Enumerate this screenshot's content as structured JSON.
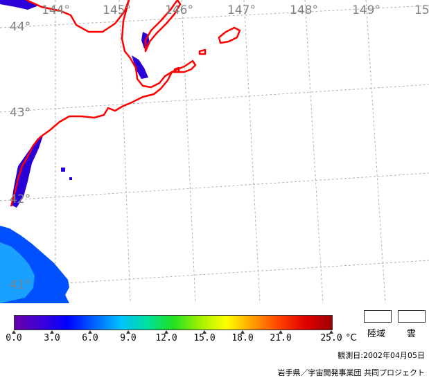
{
  "map": {
    "longitude_labels": [
      "144°",
      "145°",
      "146°",
      "147°",
      "148°",
      "149°",
      "15"
    ],
    "latitude_labels": [
      "44°",
      "43°",
      "42°",
      "41°"
    ],
    "colors": {
      "coastline": "#ff0000",
      "graticule": "#b0b0b0",
      "label": "#808080",
      "sst_cold": "#2b00d8",
      "sst_cool": "#0050ff",
      "sst_mid": "#1aa0ff"
    }
  },
  "colorbar": {
    "labels": [
      "0.0",
      "3.0",
      "6.0",
      "9.0",
      "12.0",
      "15.0",
      "18.0",
      "21.0",
      "25.0"
    ],
    "unit": "°C",
    "min": 0,
    "max": 25,
    "stops": [
      "#6a00a8",
      "#3c00d8",
      "#0000ff",
      "#0060ff",
      "#00c0ff",
      "#00e0a0",
      "#20e020",
      "#a0f000",
      "#ffff00",
      "#ffa000",
      "#ff4000",
      "#e00000",
      "#a00000"
    ]
  },
  "legend": {
    "land_label": "陸域",
    "cloud_label": "雲"
  },
  "footer": {
    "observation_date": "観測日:2002年04月05日",
    "credit": "岩手県／宇宙開発事業団 共同プロジェクト"
  }
}
